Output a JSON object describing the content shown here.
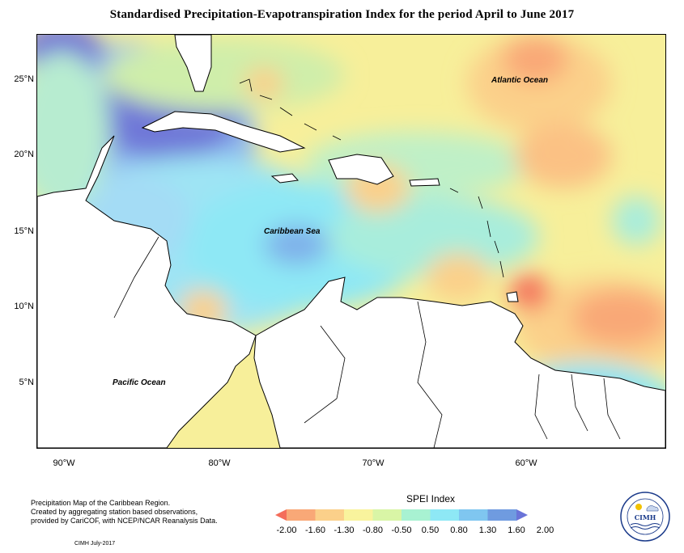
{
  "title": "Standardised Precipitation-Evapotranspiration Index for the period April to June 2017",
  "axes": {
    "latitudes": [
      "25°N",
      "20°N",
      "15°N",
      "10°N",
      "5°N"
    ],
    "longitudes": [
      "90°W",
      "80°W",
      "70°W",
      "60°W"
    ]
  },
  "labels": {
    "atlantic": "Atlantic Ocean",
    "caribbean": "Caribbean Sea",
    "pacific": "Pacific Ocean"
  },
  "notes": {
    "line1": "Precipitation Map of the Caribbean Region.",
    "line2": "Created by aggregating station based observations,",
    "line3": "provided by CariCOF, with NCEP/NCAR Reanalysis Data.",
    "credit": "CIMH July-2017"
  },
  "legend": {
    "title": "SPEI Index",
    "ticks": [
      "-2.00",
      "-1.60",
      "-1.30",
      "-0.80",
      "-0.50",
      "0.50",
      "0.80",
      "1.30",
      "1.60",
      "2.00"
    ],
    "colors": [
      "#f46d5a",
      "#f9a877",
      "#fbd08a",
      "#f9f39d",
      "#d9f5a6",
      "#a8f2d2",
      "#8ee8f5",
      "#7fc6f0",
      "#6f9be0",
      "#6a74d8"
    ]
  },
  "logo": {
    "text": "CIMH",
    "ring": "Caribbean Institute for Meteorology and Hydrology"
  },
  "colors": {
    "land": "#ffffff",
    "border": "#000000"
  }
}
